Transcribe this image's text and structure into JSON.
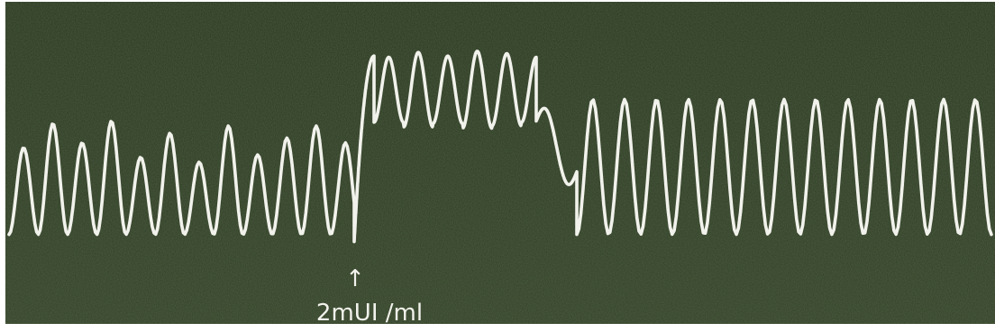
{
  "chart_data": {
    "type": "line",
    "title": "",
    "xlabel": "",
    "ylabel": "",
    "grid": false,
    "legend": "none",
    "series": [
      {
        "name": "",
        "color": "#f2f2ec",
        "segments": [
          {
            "cycles": 11.8,
            "baseline": 0.08,
            "amplitude": [
              0.36,
              0.46,
              0.38,
              0.47,
              0.32,
              0.42,
              0.3,
              0.45,
              0.33,
              0.4,
              0.45,
              0.38
            ]
          },
          {
            "transition": "rise",
            "from": 0.05,
            "to": 0.82
          },
          {
            "cycles": 5.5,
            "baseline": 0.68,
            "amplitude": [
              0.27,
              0.31,
              0.28,
              0.32,
              0.3,
              0.27
            ]
          },
          {
            "transition": "decay",
            "from": 0.55,
            "to": 0.34
          },
          {
            "cycles": 13,
            "baseline": 0.36,
            "amplitude": [
              0.56
            ]
          }
        ]
      }
    ],
    "annotations": [
      {
        "symbol": "↑",
        "text": "2mUI /ml"
      }
    ]
  },
  "colors": {
    "background": "#2c3a22",
    "trace": "#f2f2ec",
    "annotation": "#f2f2ec"
  }
}
